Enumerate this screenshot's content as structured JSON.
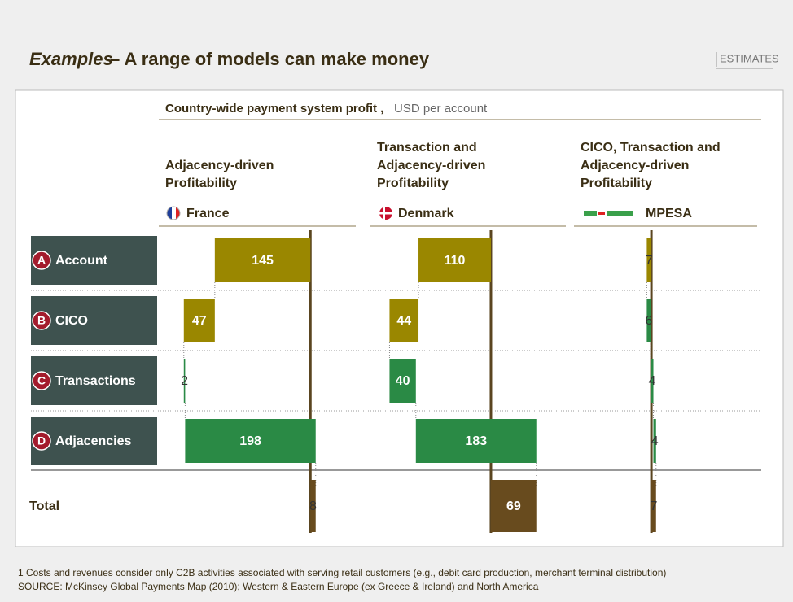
{
  "title_italic": "Examples",
  "title_rest": "– A range of models can make money",
  "stamp": "ESTIMATES",
  "subtitle_bold": "Country-wide payment system profit ,",
  "subtitle_unit": "USD per account",
  "rows": [
    {
      "letter": "A",
      "label": "Account"
    },
    {
      "letter": "B",
      "label": "CICO"
    },
    {
      "letter": "C",
      "label": "Transactions"
    },
    {
      "letter": "D",
      "label": "Adjacencies"
    }
  ],
  "total_label": "Total",
  "footnote": "1 Costs and revenues consider only C2B activities associated with serving retail customers (e.g., debit card production, merchant terminal distribution)",
  "source": "SOURCE: McKinsey Global Payments Map (2010); Western & Eastern Europe (ex Greece & Ireland) and North America",
  "colors": {
    "negative": "#9a8700",
    "positive": "#2a8a45",
    "total": "#684b1e"
  },
  "chart_data": [
    {
      "type": "waterfall",
      "heading": [
        "Adjacency-driven",
        "Profitability"
      ],
      "name": "France",
      "values": [
        -145,
        -47,
        2,
        198
      ],
      "value_labels": [
        "145",
        "47",
        "2",
        "198"
      ],
      "total": 8,
      "xlim": [
        -230,
        75
      ]
    },
    {
      "type": "waterfall",
      "heading": [
        "Transaction and",
        "Adjacency-driven",
        "Profitability"
      ],
      "name": "Denmark",
      "values": [
        -110,
        -44,
        40,
        183
      ],
      "value_labels": [
        "110",
        "44",
        "40",
        "183"
      ],
      "total": 69,
      "xlim": [
        -183,
        120
      ]
    },
    {
      "type": "waterfall",
      "heading": [
        "CICO, Transaction and",
        "Adjacency-driven",
        "Profitability"
      ],
      "name": "MPESA",
      "values": [
        -7,
        6,
        4,
        4
      ],
      "value_labels": [
        "7",
        "6",
        "4",
        "4"
      ],
      "total": 7,
      "xlim": [
        -117,
        166
      ]
    }
  ]
}
